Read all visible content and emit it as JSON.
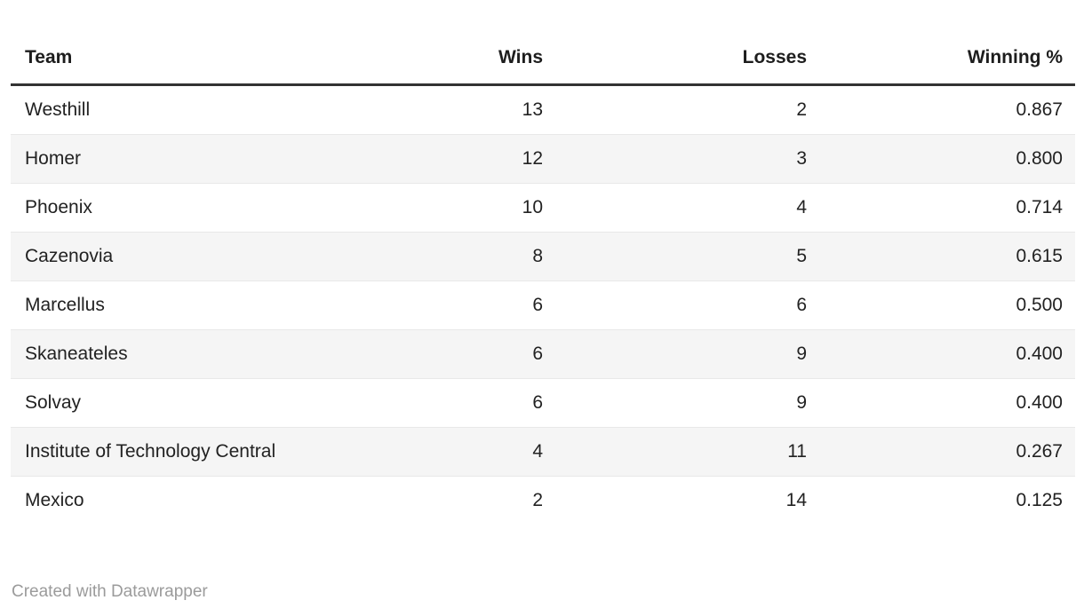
{
  "table": {
    "columns": [
      {
        "label": "Team",
        "align": "left"
      },
      {
        "label": "Wins",
        "align": "right"
      },
      {
        "label": "Losses",
        "align": "right"
      },
      {
        "label": "Winning %",
        "align": "right"
      }
    ],
    "rows": [
      {
        "team": "Westhill",
        "wins": "13",
        "losses": "2",
        "winning_pct": "0.867"
      },
      {
        "team": "Homer",
        "wins": "12",
        "losses": "3",
        "winning_pct": "0.800"
      },
      {
        "team": "Phoenix",
        "wins": "10",
        "losses": "4",
        "winning_pct": "0.714"
      },
      {
        "team": "Cazenovia",
        "wins": "8",
        "losses": "5",
        "winning_pct": "0.615"
      },
      {
        "team": "Marcellus",
        "wins": "6",
        "losses": "6",
        "winning_pct": "0.500"
      },
      {
        "team": "Skaneateles",
        "wins": "6",
        "losses": "9",
        "winning_pct": "0.400"
      },
      {
        "team": "Solvay",
        "wins": "6",
        "losses": "9",
        "winning_pct": "0.400"
      },
      {
        "team": "Institute of Technology Central",
        "wins": "4",
        "losses": "11",
        "winning_pct": "0.267"
      },
      {
        "team": "Mexico",
        "wins": "2",
        "losses": "14",
        "winning_pct": "0.125"
      }
    ]
  },
  "footer": {
    "attribution": "Created with Datawrapper"
  },
  "colors": {
    "header_rule": "#333333",
    "row_alt_background": "#f5f5f5",
    "row_divider": "#e8e8e8",
    "text": "#222222",
    "header_text": "#1d1d1d",
    "footer_text": "#9b9b9b"
  },
  "chart_data": {
    "type": "table",
    "columns": [
      "Team",
      "Wins",
      "Losses",
      "Winning %"
    ],
    "rows": [
      [
        "Westhill",
        13,
        2,
        0.867
      ],
      [
        "Homer",
        12,
        3,
        0.8
      ],
      [
        "Phoenix",
        10,
        4,
        0.714
      ],
      [
        "Cazenovia",
        8,
        5,
        0.615
      ],
      [
        "Marcellus",
        6,
        6,
        0.5
      ],
      [
        "Skaneateles",
        6,
        9,
        0.4
      ],
      [
        "Solvay",
        6,
        9,
        0.4
      ],
      [
        "Institute of Technology Central",
        4,
        11,
        0.267
      ],
      [
        "Mexico",
        2,
        14,
        0.125
      ]
    ],
    "layout": {
      "banded_rows": true,
      "numeric_alignment": "right",
      "header_rule": true
    },
    "attribution": "Created with Datawrapper"
  }
}
